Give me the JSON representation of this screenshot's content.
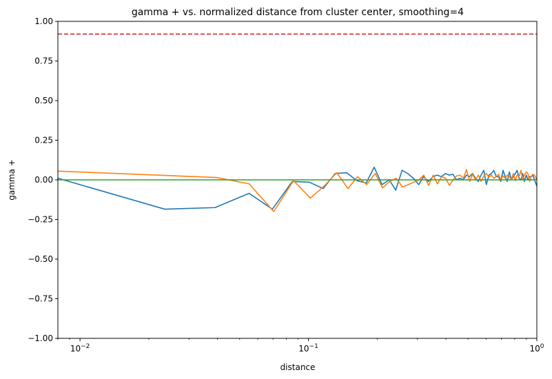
{
  "chart_data": {
    "type": "line",
    "title": "gamma + vs. normalized distance from cluster center, smoothing=4",
    "xlabel": "distance",
    "ylabel": "gamma +",
    "xscale": "log",
    "xlim": [
      0.008,
      1.0
    ],
    "ylim": [
      -1.0,
      1.0
    ],
    "grid": false,
    "xticks": [
      {
        "value": 0.01,
        "base": "10",
        "exp": "−2"
      },
      {
        "value": 0.1,
        "base": "10",
        "exp": "−1"
      },
      {
        "value": 1.0,
        "base": "10",
        "exp": "0"
      }
    ],
    "yticks": [
      {
        "value": -1.0,
        "label": "−1.00"
      },
      {
        "value": -0.75,
        "label": "−0.75"
      },
      {
        "value": -0.5,
        "label": "−0.50"
      },
      {
        "value": -0.25,
        "label": "−0.25"
      },
      {
        "value": 0.0,
        "label": "0.00"
      },
      {
        "value": 0.25,
        "label": "0.25"
      },
      {
        "value": 0.5,
        "label": "0.50"
      },
      {
        "value": 0.75,
        "label": "0.75"
      },
      {
        "value": 1.0,
        "label": "1.00"
      }
    ],
    "hlines": [
      {
        "y": 0.92,
        "color": "#d62728",
        "style": "dashed"
      },
      {
        "y": 0.0,
        "color": "#2ca02c",
        "style": "solid"
      }
    ],
    "series": [
      {
        "color": "#1f77b4",
        "x": [
          0.008,
          0.0235,
          0.039,
          0.055,
          0.0695,
          0.085,
          0.101,
          0.116,
          0.131,
          0.147,
          0.163,
          0.179,
          0.194,
          0.21,
          0.226,
          0.241,
          0.257,
          0.272,
          0.288,
          0.304,
          0.319,
          0.335,
          0.351,
          0.366,
          0.382,
          0.398,
          0.413,
          0.429,
          0.445,
          0.46,
          0.476,
          0.492,
          0.507,
          0.523,
          0.539,
          0.554,
          0.57,
          0.586,
          0.601,
          0.617,
          0.633,
          0.648,
          0.664,
          0.68,
          0.695,
          0.711,
          0.727,
          0.742,
          0.758,
          0.773,
          0.789,
          0.805,
          0.82,
          0.836,
          0.852,
          0.867,
          0.883,
          0.899,
          0.914,
          0.93,
          0.946,
          0.961,
          0.977,
          1.0
        ],
        "y": [
          0.01,
          -0.185,
          -0.175,
          -0.085,
          -0.185,
          -0.01,
          -0.015,
          -0.055,
          0.04,
          0.045,
          -0.005,
          -0.02,
          0.08,
          -0.03,
          0.0,
          -0.065,
          0.06,
          0.04,
          0.01,
          -0.03,
          0.02,
          -0.01,
          0.02,
          0.03,
          0.02,
          0.04,
          0.03,
          0.035,
          0.0,
          0.01,
          0.0,
          0.03,
          0.02,
          0.04,
          0.01,
          -0.01,
          0.03,
          0.06,
          -0.03,
          0.03,
          0.04,
          0.06,
          0.02,
          0.02,
          -0.01,
          0.06,
          0.02,
          -0.01,
          0.05,
          0.0,
          0.02,
          0.04,
          0.06,
          0.01,
          0.0,
          0.04,
          -0.01,
          0.03,
          0.0,
          0.02,
          0.02,
          0.03,
          0.0,
          -0.04
        ]
      },
      {
        "color": "#ff7f0e",
        "x": [
          0.008,
          0.0395,
          0.055,
          0.0705,
          0.086,
          0.102,
          0.117,
          0.133,
          0.149,
          0.164,
          0.18,
          0.196,
          0.211,
          0.227,
          0.242,
          0.258,
          0.274,
          0.289,
          0.305,
          0.32,
          0.336,
          0.352,
          0.367,
          0.383,
          0.399,
          0.414,
          0.43,
          0.445,
          0.461,
          0.477,
          0.492,
          0.508,
          0.524,
          0.539,
          0.555,
          0.57,
          0.586,
          0.602,
          0.617,
          0.633,
          0.648,
          0.664,
          0.68,
          0.695,
          0.711,
          0.727,
          0.742,
          0.758,
          0.773,
          0.789,
          0.805,
          0.82,
          0.836,
          0.852,
          0.867,
          0.883,
          0.898,
          0.914,
          0.93,
          0.945,
          0.961,
          0.977,
          1.0
        ],
        "y": [
          0.055,
          0.015,
          -0.025,
          -0.2,
          -0.005,
          -0.115,
          -0.04,
          0.045,
          -0.055,
          0.02,
          -0.03,
          0.04,
          -0.05,
          -0.01,
          0.01,
          -0.045,
          -0.03,
          -0.015,
          0.0,
          0.03,
          -0.035,
          0.03,
          -0.025,
          0.02,
          0.01,
          -0.035,
          0.0,
          0.025,
          0.03,
          0.01,
          0.065,
          -0.01,
          0.035,
          0.0,
          0.03,
          -0.01,
          0.025,
          0.04,
          0.015,
          0.03,
          0.01,
          0.02,
          0.035,
          0.0,
          0.025,
          0.01,
          0.03,
          0.02,
          0.0,
          0.04,
          -0.005,
          0.03,
          0.02,
          0.06,
          0.0,
          0.03,
          0.05,
          0.04,
          -0.01,
          0.02,
          0.035,
          0.03,
          0.0
        ]
      }
    ]
  }
}
